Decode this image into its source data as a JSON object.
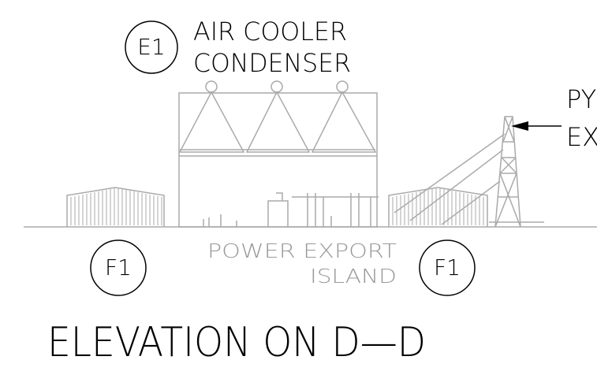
{
  "tags": {
    "e1": "E1",
    "f1_left": "F1",
    "f1_right": "F1"
  },
  "labels": {
    "condenser_line1": "AIR COOLER",
    "condenser_line2": "CONDENSER",
    "pylon_line1": "PY",
    "pylon_line2": "EX",
    "island_line1": "POWER EXPORT",
    "island_line2": "ISLAND"
  },
  "title": "ELEVATION ON D—D"
}
